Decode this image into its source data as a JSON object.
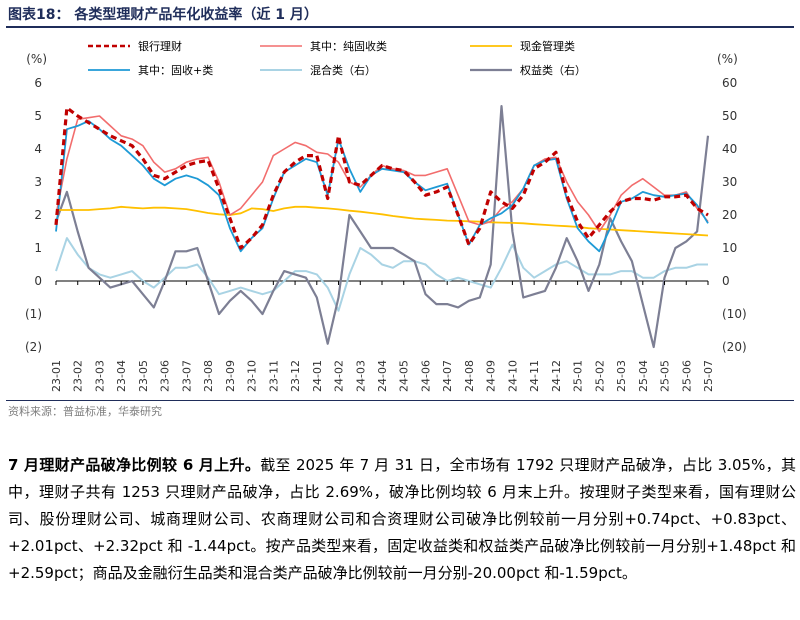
{
  "figure_title": "图表18：  各类型理财产品年化收益率（近 1 月）",
  "source": "资料来源：普益标准，华泰研究",
  "paragraph": {
    "lead": "7 月理财产品破净比例较 6 月上升。",
    "body": "截至 2025 年 7 月 31 日，全市场有 1792 只理财产品破净，占比 3.05%，其中，理财子共有 1253 只理财产品破净，占比 2.69%，破净比例均较 6 月末上升。按理财子类型来看，国有理财公司、股份理财公司、城商理财公司、农商理财公司和合资理财公司破净比例较前一月分别+0.74pct、+0.83pct、+2.01pct、+2.32pct 和 -1.44pct。按产品类型来看，固定收益类和权益类产品破净比例较前一月分别+1.48pct 和+2.59pct；商品及金融衍生品类和混合类产品破净比例较前一月分别-20.00pct 和-1.59pct。"
  },
  "chart_data": {
    "type": "line",
    "left_axis": {
      "unit_label": "(%)",
      "ylim": [
        -2,
        6
      ],
      "ticks": [
        -2,
        -1,
        0,
        1,
        2,
        3,
        4,
        5,
        6
      ],
      "tick_labels": [
        "(2)",
        "(1)",
        "0",
        "1",
        "2",
        "3",
        "4",
        "5",
        "6"
      ]
    },
    "right_axis": {
      "unit_label": "(%)",
      "ylim": [
        -20,
        60
      ],
      "ticks": [
        -20,
        -10,
        0,
        10,
        20,
        30,
        40,
        50,
        60
      ],
      "tick_labels": [
        "(20)",
        "(10)",
        "0",
        "10",
        "20",
        "30",
        "40",
        "50",
        "60"
      ]
    },
    "x": [
      0,
      0.5,
      1,
      1.5,
      2,
      2.5,
      3,
      3.5,
      4,
      4.5,
      5,
      5.5,
      6,
      6.5,
      7,
      7.5,
      8,
      8.5,
      9,
      9.5,
      10,
      10.5,
      11,
      11.5,
      12,
      12.5,
      13,
      13.5,
      14,
      14.5,
      15,
      15.5,
      16,
      16.5,
      17,
      17.5,
      18,
      18.5,
      19,
      19.5,
      20,
      20.5,
      21,
      21.5,
      22,
      22.5,
      23,
      23.5,
      24,
      24.5,
      25,
      25.5,
      26,
      26.5,
      27,
      27.5,
      28,
      28.5,
      29,
      29.5,
      30
    ],
    "categories": [
      "23-01",
      "23-02",
      "23-03",
      "23-04",
      "23-05",
      "23-06",
      "23-07",
      "23-08",
      "23-09",
      "23-10",
      "23-11",
      "23-12",
      "24-01",
      "24-02",
      "24-03",
      "24-04",
      "24-05",
      "24-06",
      "24-07",
      "24-08",
      "24-09",
      "24-10",
      "24-11",
      "24-12",
      "25-01",
      "25-02",
      "25-03",
      "25-04",
      "25-05",
      "25-06",
      "25-07"
    ],
    "series": [
      {
        "name": "银行理财",
        "axis": "left",
        "color": "#c00000",
        "dash": "6,4",
        "width": 3.2,
        "values": [
          1.7,
          5.25,
          5.0,
          4.8,
          4.6,
          4.4,
          4.25,
          4.1,
          3.7,
          3.2,
          3.1,
          3.3,
          3.5,
          3.6,
          3.65,
          2.8,
          1.9,
          1.0,
          1.3,
          1.7,
          2.6,
          3.3,
          3.6,
          3.8,
          3.8,
          2.5,
          4.4,
          3.0,
          2.9,
          3.2,
          3.5,
          3.4,
          3.35,
          3.0,
          2.6,
          2.7,
          2.85,
          2.0,
          1.1,
          1.6,
          2.7,
          2.4,
          2.2,
          2.6,
          3.4,
          3.6,
          3.9,
          2.6,
          1.8,
          1.3,
          1.7,
          2.1,
          2.4,
          2.5,
          2.5,
          2.45,
          2.55,
          2.55,
          2.6,
          2.2,
          2.0
        ]
      },
      {
        "name": "其中：纯固收类",
        "axis": "left",
        "color": "#f26d6d",
        "dash": "",
        "width": 1.6,
        "values": [
          2.0,
          3.7,
          4.9,
          4.95,
          5.0,
          4.7,
          4.4,
          4.3,
          4.1,
          3.6,
          3.3,
          3.4,
          3.6,
          3.7,
          3.75,
          3.0,
          2.0,
          2.2,
          2.6,
          3.0,
          3.8,
          4.0,
          4.2,
          4.1,
          3.9,
          3.85,
          3.6,
          3.0,
          2.85,
          3.2,
          3.5,
          3.4,
          3.35,
          3.2,
          3.2,
          3.3,
          3.4,
          2.6,
          1.8,
          1.7,
          1.8,
          2.2,
          2.4,
          2.8,
          3.5,
          3.7,
          3.75,
          3.0,
          2.4,
          2.0,
          1.5,
          2.0,
          2.6,
          2.9,
          3.1,
          2.85,
          2.6,
          2.6,
          2.7,
          2.2,
          1.8
        ]
      },
      {
        "name": "其中：固收+类",
        "axis": "left",
        "color": "#1e9ad6",
        "dash": "",
        "width": 1.8,
        "values": [
          1.5,
          4.6,
          4.7,
          4.85,
          4.6,
          4.3,
          4.1,
          3.8,
          3.5,
          3.1,
          2.9,
          3.1,
          3.2,
          3.1,
          2.9,
          2.6,
          1.6,
          0.9,
          1.3,
          1.6,
          2.5,
          3.3,
          3.5,
          3.7,
          3.6,
          2.6,
          4.3,
          3.4,
          2.7,
          3.2,
          3.4,
          3.35,
          3.3,
          3.0,
          2.75,
          2.85,
          2.95,
          2.0,
          1.1,
          1.7,
          1.9,
          2.05,
          2.3,
          2.8,
          3.5,
          3.65,
          3.7,
          2.5,
          1.6,
          1.2,
          0.9,
          1.6,
          2.4,
          2.5,
          2.7,
          2.6,
          2.55,
          2.6,
          2.65,
          2.3,
          1.75
        ]
      },
      {
        "name": "现金管理类",
        "axis": "left",
        "color": "#ffc000",
        "dash": "",
        "width": 1.8,
        "values": [
          2.15,
          2.15,
          2.15,
          2.15,
          2.18,
          2.2,
          2.25,
          2.22,
          2.2,
          2.22,
          2.22,
          2.2,
          2.18,
          2.12,
          2.06,
          2.02,
          2.0,
          2.05,
          2.2,
          2.18,
          2.12,
          2.2,
          2.25,
          2.25,
          2.22,
          2.2,
          2.17,
          2.13,
          2.1,
          2.06,
          2.02,
          1.97,
          1.93,
          1.89,
          1.87,
          1.85,
          1.83,
          1.82,
          1.81,
          1.8,
          1.78,
          1.77,
          1.76,
          1.75,
          1.72,
          1.7,
          1.68,
          1.66,
          1.64,
          1.6,
          1.58,
          1.56,
          1.54,
          1.52,
          1.5,
          1.48,
          1.46,
          1.44,
          1.42,
          1.4,
          1.38
        ]
      },
      {
        "name": "混合类（右）",
        "axis": "right",
        "color": "#a9d3e4",
        "dash": "",
        "width": 2.0,
        "values": [
          3,
          13,
          8,
          4,
          2,
          1,
          2,
          3,
          0,
          -2,
          1,
          4,
          4,
          5,
          1,
          -4,
          -3,
          -2,
          -3,
          -4,
          -3,
          0,
          3,
          3,
          2,
          -2,
          -9,
          2,
          10,
          8,
          5,
          4,
          6,
          6,
          5,
          2,
          0,
          1,
          0,
          -1,
          -2,
          4,
          11,
          4,
          1,
          3,
          5,
          6,
          4,
          2,
          2,
          2,
          3,
          3,
          1,
          1,
          3,
          4,
          4,
          5,
          5
        ]
      },
      {
        "name": "权益类（右）",
        "axis": "right",
        "color": "#7d7f94",
        "dash": "",
        "width": 2.2,
        "values": [
          18,
          27,
          15,
          4,
          1,
          -2,
          -1,
          0,
          -4,
          -8,
          0,
          9,
          9,
          10,
          0,
          -10,
          -6,
          -3,
          -6,
          -10,
          -3,
          3,
          2,
          1,
          -5,
          -19,
          -5,
          20,
          15,
          10,
          10,
          10,
          8,
          6,
          -4,
          -7,
          -7,
          -8,
          -6,
          -5,
          5,
          53,
          15,
          -5,
          -4,
          -3,
          4,
          13,
          6,
          -3,
          5,
          19,
          12,
          6,
          -7,
          -20,
          1,
          10,
          12,
          15,
          44
        ]
      }
    ],
    "legend": [
      {
        "name": "银行理财",
        "position": "row1-col1"
      },
      {
        "name": "其中：纯固收类",
        "position": "row1-col2"
      },
      {
        "name": "现金管理类",
        "position": "row1-col3"
      },
      {
        "name": "其中：固收+类",
        "position": "row2-col1"
      },
      {
        "name": "混合类（右）",
        "position": "row2-col2"
      },
      {
        "name": "权益类（右）",
        "position": "row2-col3"
      }
    ]
  }
}
